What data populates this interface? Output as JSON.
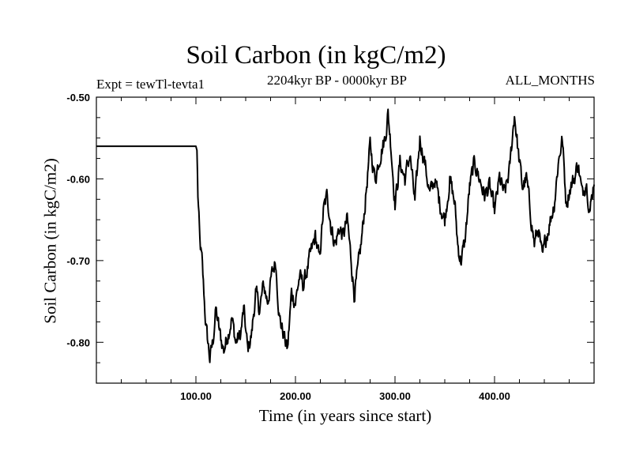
{
  "chart_data": {
    "type": "line",
    "title": "Soil Carbon (in kgC/m2)",
    "subtitle": "2204kyr BP - 0000kyr BP",
    "left_label": "Expt = tewTl-tevta1",
    "right_label": "ALL_MONTHS",
    "xlabel": "Time (in years since start)",
    "ylabel": "Soil Carbon (in kgC/m2)",
    "xlim": [
      0,
      500
    ],
    "ylim": [
      -0.85,
      -0.5
    ],
    "x_major_ticks": [
      100,
      200,
      300,
      400
    ],
    "x_tick_labels": [
      "100.00",
      "200.00",
      "300.00",
      "400.00"
    ],
    "y_major_ticks": [
      -0.5,
      -0.6,
      -0.7,
      -0.8
    ],
    "y_tick_labels": [
      "-0.50",
      "-0.60",
      "-0.70",
      "-0.80"
    ],
    "series": [
      {
        "name": "Soil Carbon",
        "x": [
          0,
          100,
          101,
          102,
          104,
          106,
          108,
          110,
          112,
          114,
          117,
          120,
          124,
          128,
          132,
          136,
          140,
          145,
          148,
          152,
          156,
          160,
          164,
          168,
          172,
          176,
          180,
          184,
          188,
          192,
          196,
          200,
          204,
          208,
          212,
          216,
          220,
          224,
          228,
          232,
          236,
          240,
          244,
          248,
          252,
          256,
          259,
          262,
          266,
          270,
          275,
          280,
          285,
          290,
          293,
          296,
          300,
          305,
          310,
          315,
          320,
          325,
          330,
          335,
          340,
          345,
          350,
          355,
          360,
          363,
          366,
          370,
          375,
          380,
          385,
          390,
          395,
          400,
          405,
          410,
          415,
          420,
          424,
          428,
          432,
          436,
          440,
          444,
          448,
          452,
          456,
          460,
          464,
          468,
          472,
          476,
          480,
          484,
          488,
          492,
          496,
          500
        ],
        "y": [
          -0.56,
          -0.56,
          -0.565,
          -0.62,
          -0.68,
          -0.7,
          -0.74,
          -0.78,
          -0.8,
          -0.82,
          -0.8,
          -0.76,
          -0.79,
          -0.81,
          -0.79,
          -0.77,
          -0.8,
          -0.79,
          -0.76,
          -0.81,
          -0.79,
          -0.74,
          -0.76,
          -0.73,
          -0.75,
          -0.72,
          -0.7,
          -0.77,
          -0.79,
          -0.81,
          -0.74,
          -0.75,
          -0.72,
          -0.73,
          -0.71,
          -0.69,
          -0.67,
          -0.7,
          -0.64,
          -0.62,
          -0.66,
          -0.68,
          -0.66,
          -0.67,
          -0.65,
          -0.7,
          -0.74,
          -0.72,
          -0.68,
          -0.63,
          -0.56,
          -0.6,
          -0.57,
          -0.55,
          -0.52,
          -0.56,
          -0.63,
          -0.58,
          -0.6,
          -0.57,
          -0.63,
          -0.55,
          -0.58,
          -0.62,
          -0.6,
          -0.63,
          -0.65,
          -0.6,
          -0.63,
          -0.68,
          -0.7,
          -0.68,
          -0.61,
          -0.58,
          -0.6,
          -0.62,
          -0.61,
          -0.64,
          -0.6,
          -0.62,
          -0.59,
          -0.52,
          -0.57,
          -0.61,
          -0.6,
          -0.64,
          -0.68,
          -0.66,
          -0.7,
          -0.67,
          -0.65,
          -0.63,
          -0.58,
          -0.55,
          -0.63,
          -0.61,
          -0.6,
          -0.58,
          -0.62,
          -0.6,
          -0.64,
          -0.6
        ]
      }
    ]
  }
}
